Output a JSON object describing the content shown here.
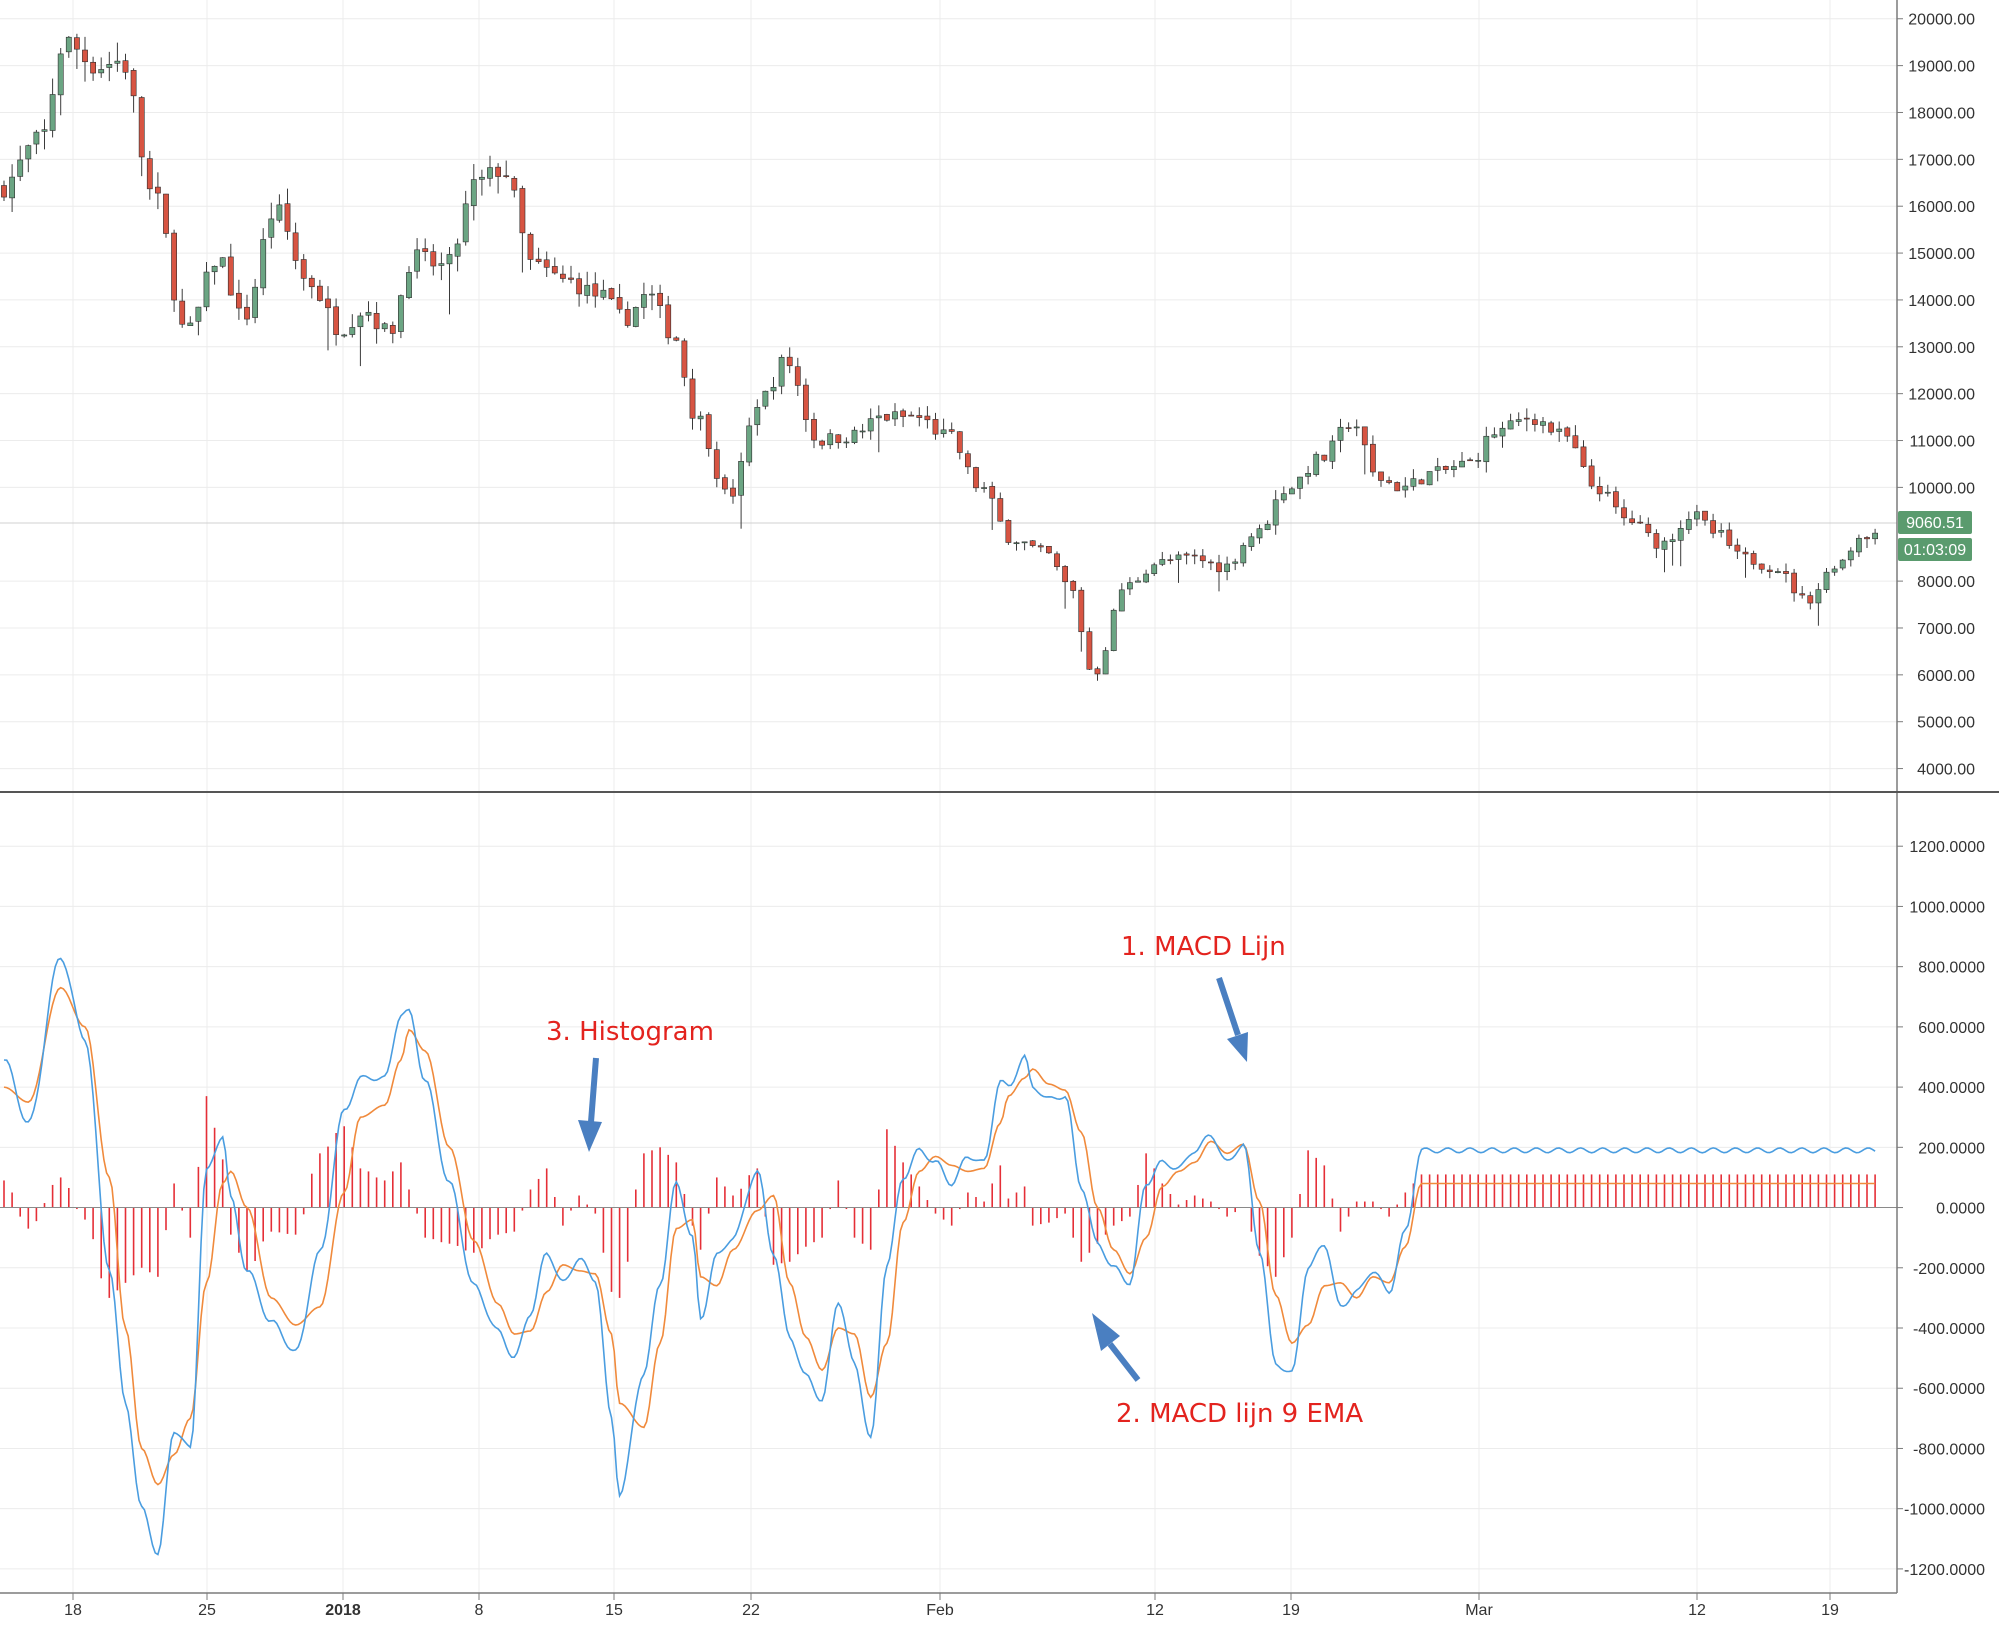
{
  "chart_data": [
    {
      "type": "candlestick",
      "title": "",
      "ylim": [
        3500,
        20400
      ],
      "y_ticks": [
        20000,
        19000,
        18000,
        17000,
        16000,
        15000,
        14000,
        13000,
        12000,
        11000,
        10000,
        8000,
        7000,
        6000,
        5000,
        4000
      ],
      "y_tick_labels": [
        "20000.00",
        "19000.00",
        "18000.00",
        "17000.00",
        "16000.00",
        "15000.00",
        "14000.00",
        "13000.00",
        "12000.00",
        "11000.00",
        "10000.00",
        "8000.00",
        "7000.00",
        "6000.00",
        "5000.00",
        "4000.00"
      ],
      "x_tick_labels": [
        "18",
        "25",
        "2018",
        "8",
        "15",
        "22",
        "Feb",
        "12",
        "19",
        "Mar",
        "12",
        "19"
      ],
      "x_tick_bold": [
        "2018"
      ],
      "price_key": [
        [
          0,
          16400
        ],
        [
          5,
          17400
        ],
        [
          8,
          19500
        ],
        [
          12,
          19000
        ],
        [
          15,
          19100
        ],
        [
          19,
          16200
        ],
        [
          23,
          13300
        ],
        [
          27,
          14900
        ],
        [
          30,
          13600
        ],
        [
          34,
          15900
        ],
        [
          38,
          14400
        ],
        [
          42,
          13400
        ],
        [
          45,
          13800
        ],
        [
          48,
          13300
        ],
        [
          51,
          14900
        ],
        [
          55,
          14700
        ],
        [
          59,
          16500
        ],
        [
          62,
          16800
        ],
        [
          66,
          14700
        ],
        [
          70,
          14400
        ],
        [
          74,
          14100
        ],
        [
          77,
          13600
        ],
        [
          80,
          14100
        ],
        [
          83,
          13300
        ],
        [
          86,
          11500
        ],
        [
          90,
          9800
        ],
        [
          94,
          11900
        ],
        [
          97,
          12700
        ],
        [
          101,
          11000
        ],
        [
          105,
          11100
        ],
        [
          109,
          11500
        ],
        [
          113,
          11500
        ],
        [
          117,
          11100
        ],
        [
          121,
          10000
        ],
        [
          125,
          8900
        ],
        [
          129,
          8600
        ],
        [
          132,
          7900
        ],
        [
          135,
          6000
        ],
        [
          139,
          7900
        ],
        [
          143,
          8400
        ],
        [
          147,
          8500
        ],
        [
          151,
          8300
        ],
        [
          155,
          9000
        ],
        [
          159,
          10000
        ],
        [
          163,
          10600
        ],
        [
          167,
          11400
        ],
        [
          170,
          10200
        ],
        [
          173,
          10000
        ],
        [
          177,
          10300
        ],
        [
          181,
          10500
        ],
        [
          185,
          11200
        ],
        [
          189,
          11500
        ],
        [
          193,
          11100
        ],
        [
          197,
          10000
        ],
        [
          201,
          9300
        ],
        [
          205,
          8800
        ],
        [
          209,
          9400
        ],
        [
          212,
          9000
        ],
        [
          215,
          8500
        ],
        [
          219,
          8300
        ],
        [
          223,
          7600
        ],
        [
          227,
          8400
        ],
        [
          230,
          9000
        ]
      ],
      "last_price": "9060.51",
      "countdown": "01:03:09",
      "colors": {
        "up": "#6ba583",
        "down": "#d75442",
        "wick": "#3a3a3a",
        "tag": "#5a9b6e"
      }
    },
    {
      "type": "line",
      "title": "",
      "ylim": [
        -1280,
        1380
      ],
      "y_ticks": [
        1200,
        1000,
        800,
        600,
        400,
        200,
        0,
        -200,
        -400,
        -600,
        -800,
        -1000,
        -1200
      ],
      "y_tick_labels": [
        "1200.0000",
        "1000.0000",
        "800.0000",
        "600.0000",
        "400.0000",
        "200.0000",
        "0.0000",
        "-200.0000",
        "-400.0000",
        "-600.0000",
        "-800.0000",
        "-1000.0000",
        "-1200.0000"
      ],
      "macd_key": [
        [
          0,
          490
        ],
        [
          3,
          280
        ],
        [
          7,
          830
        ],
        [
          10,
          560
        ],
        [
          13,
          -200
        ],
        [
          15,
          -650
        ],
        [
          17,
          -1000
        ],
        [
          19,
          -1150
        ],
        [
          21,
          -740
        ],
        [
          23,
          -800
        ],
        [
          25,
          120
        ],
        [
          27,
          240
        ],
        [
          28,
          30
        ],
        [
          30,
          -210
        ],
        [
          33,
          -380
        ],
        [
          36,
          -480
        ],
        [
          39,
          -150
        ],
        [
          42,
          320
        ],
        [
          44,
          430
        ],
        [
          47,
          430
        ],
        [
          49,
          640
        ],
        [
          50,
          650
        ],
        [
          52,
          420
        ],
        [
          55,
          80
        ],
        [
          58,
          -260
        ],
        [
          61,
          -410
        ],
        [
          63,
          -500
        ],
        [
          65,
          -350
        ],
        [
          67,
          -150
        ],
        [
          69,
          -250
        ],
        [
          71,
          -170
        ],
        [
          73,
          -240
        ],
        [
          75,
          -700
        ],
        [
          76,
          -950
        ],
        [
          79,
          -550
        ],
        [
          81,
          -250
        ],
        [
          83,
          80
        ],
        [
          85,
          -100
        ],
        [
          86,
          -370
        ],
        [
          88,
          -160
        ],
        [
          90,
          -100
        ],
        [
          93,
          120
        ],
        [
          95,
          -150
        ],
        [
          97,
          -430
        ],
        [
          99,
          -560
        ],
        [
          101,
          -640
        ],
        [
          103,
          -310
        ],
        [
          105,
          -520
        ],
        [
          107,
          -770
        ],
        [
          109,
          -190
        ],
        [
          111,
          100
        ],
        [
          113,
          190
        ],
        [
          115,
          150
        ],
        [
          117,
          80
        ],
        [
          119,
          170
        ],
        [
          121,
          150
        ],
        [
          123,
          420
        ],
        [
          124,
          400
        ],
        [
          126,
          500
        ],
        [
          127,
          400
        ],
        [
          129,
          360
        ],
        [
          131,
          370
        ],
        [
          133,
          70
        ],
        [
          135,
          -120
        ],
        [
          137,
          -200
        ],
        [
          139,
          -250
        ],
        [
          141,
          80
        ],
        [
          143,
          150
        ],
        [
          145,
          130
        ],
        [
          147,
          190
        ],
        [
          149,
          240
        ],
        [
          151,
          150
        ],
        [
          153,
          210
        ],
        [
          155,
          -140
        ],
        [
          157,
          -520
        ],
        [
          159,
          -550
        ],
        [
          161,
          -200
        ],
        [
          163,
          -120
        ],
        [
          165,
          -330
        ],
        [
          167,
          -280
        ],
        [
          169,
          -210
        ],
        [
          171,
          -280
        ],
        [
          173,
          -80
        ],
        [
          175,
          190
        ]
      ],
      "signal_key": [
        [
          0,
          400
        ],
        [
          3,
          350
        ],
        [
          7,
          730
        ],
        [
          10,
          600
        ],
        [
          13,
          100
        ],
        [
          15,
          -400
        ],
        [
          17,
          -800
        ],
        [
          19,
          -920
        ],
        [
          21,
          -820
        ],
        [
          23,
          -700
        ],
        [
          25,
          -250
        ],
        [
          27,
          80
        ],
        [
          28,
          120
        ],
        [
          30,
          0
        ],
        [
          33,
          -300
        ],
        [
          36,
          -390
        ],
        [
          39,
          -330
        ],
        [
          42,
          50
        ],
        [
          44,
          300
        ],
        [
          47,
          340
        ],
        [
          49,
          490
        ],
        [
          50,
          590
        ],
        [
          52,
          520
        ],
        [
          55,
          200
        ],
        [
          58,
          -110
        ],
        [
          61,
          -320
        ],
        [
          63,
          -420
        ],
        [
          65,
          -410
        ],
        [
          67,
          -280
        ],
        [
          69,
          -190
        ],
        [
          71,
          -210
        ],
        [
          73,
          -220
        ],
        [
          75,
          -420
        ],
        [
          76,
          -650
        ],
        [
          79,
          -730
        ],
        [
          81,
          -450
        ],
        [
          83,
          -70
        ],
        [
          85,
          -40
        ],
        [
          86,
          -230
        ],
        [
          88,
          -260
        ],
        [
          90,
          -140
        ],
        [
          93,
          -10
        ],
        [
          95,
          40
        ],
        [
          97,
          -250
        ],
        [
          99,
          -430
        ],
        [
          101,
          -540
        ],
        [
          103,
          -400
        ],
        [
          105,
          -420
        ],
        [
          107,
          -630
        ],
        [
          109,
          -450
        ],
        [
          111,
          -50
        ],
        [
          113,
          120
        ],
        [
          115,
          170
        ],
        [
          117,
          140
        ],
        [
          119,
          120
        ],
        [
          121,
          130
        ],
        [
          123,
          280
        ],
        [
          124,
          370
        ],
        [
          126,
          430
        ],
        [
          127,
          460
        ],
        [
          129,
          410
        ],
        [
          131,
          390
        ],
        [
          133,
          250
        ],
        [
          135,
          0
        ],
        [
          137,
          -140
        ],
        [
          139,
          -220
        ],
        [
          141,
          -100
        ],
        [
          143,
          70
        ],
        [
          145,
          120
        ],
        [
          147,
          150
        ],
        [
          149,
          220
        ],
        [
          151,
          180
        ],
        [
          153,
          210
        ],
        [
          155,
          20
        ],
        [
          157,
          -290
        ],
        [
          159,
          -450
        ],
        [
          161,
          -390
        ],
        [
          163,
          -260
        ],
        [
          165,
          -250
        ],
        [
          167,
          -300
        ],
        [
          169,
          -230
        ],
        [
          171,
          -250
        ],
        [
          173,
          -130
        ],
        [
          175,
          80
        ]
      ],
      "colors": {
        "macd": "#4a9de0",
        "signal": "#f08a3c",
        "hist": "#e52f37",
        "zero": "#7a7a7a"
      }
    }
  ],
  "annotations": {
    "macd_line": "1. MACD Lijn",
    "signal_line": "2. MACD lijn 9 EMA",
    "histogram": "3. Histogram",
    "color": "#e3231e",
    "arrow_color": "#4a7fc1"
  }
}
